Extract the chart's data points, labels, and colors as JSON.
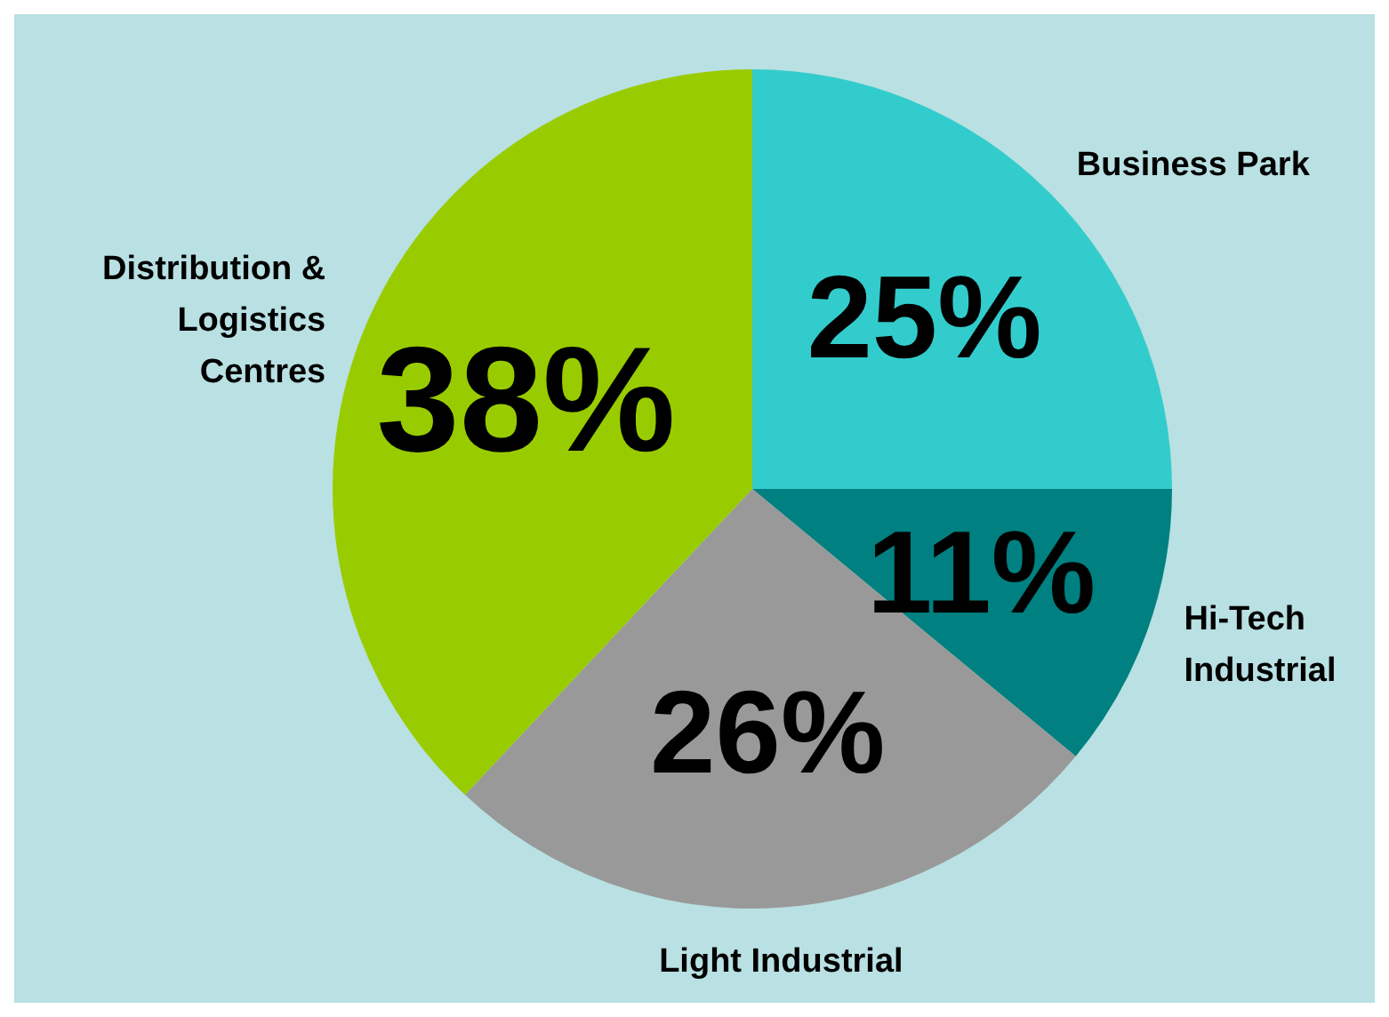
{
  "chart_data": {
    "type": "pie",
    "categories": [
      "Business Park",
      "Hi-Tech Industrial",
      "Light Industrial",
      "Distribution & Logistics Centres"
    ],
    "values": [
      25,
      11,
      26,
      38
    ],
    "colors": [
      "#33cccc",
      "#008080",
      "#999999",
      "#99cc00"
    ],
    "value_labels": [
      "25%",
      "11%",
      "26%",
      "38%"
    ]
  }
}
